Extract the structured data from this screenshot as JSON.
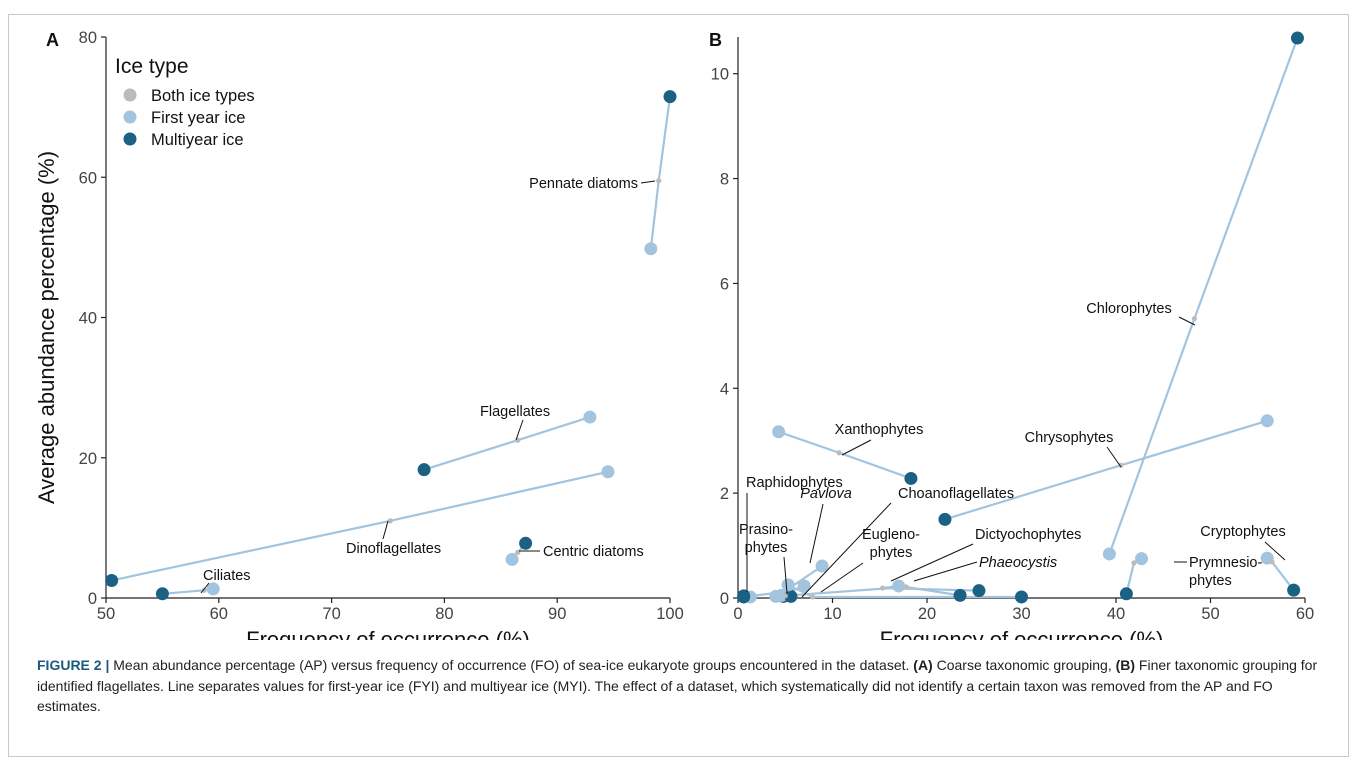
{
  "chart_data": [
    {
      "panel": "A",
      "type": "scatter",
      "xlabel": "Frequency of occurrence (%)",
      "ylabel": "Average abundance percentage (%)",
      "xlim": [
        50,
        100
      ],
      "ylim": [
        0,
        80
      ],
      "xticks": [
        50,
        60,
        70,
        80,
        90,
        100
      ],
      "yticks": [
        0,
        20,
        40,
        60,
        80
      ],
      "legend": {
        "title": "Ice type",
        "placement": "top-left",
        "entries": [
          {
            "name": "Both ice types",
            "color": "#bbbbbb"
          },
          {
            "name": "First year ice",
            "color": "#a3c4de"
          },
          {
            "name": "Multiyear ice",
            "color": "#1b6184"
          }
        ]
      },
      "groups": [
        {
          "label": "Pennate diatoms",
          "fyi": [
            98.3,
            49.8
          ],
          "both": [
            99.0,
            59.5
          ],
          "myi": [
            100.0,
            71.5
          ]
        },
        {
          "label": "Flagellates",
          "fyi": [
            92.9,
            25.8
          ],
          "both": [
            86.5,
            22.5
          ],
          "myi": [
            78.2,
            18.3
          ]
        },
        {
          "label": "Dinoflagellates",
          "fyi": [
            94.5,
            18.0
          ],
          "both": [
            75.2,
            11.0
          ],
          "myi": [
            50.5,
            2.5
          ]
        },
        {
          "label": "Centric diatoms",
          "fyi": [
            86.0,
            5.5
          ],
          "both": [
            86.5,
            6.5
          ],
          "myi": [
            87.2,
            7.8
          ]
        },
        {
          "label": "Ciliates",
          "fyi": [
            59.5,
            1.3
          ],
          "both": [
            58.7,
            1.1
          ],
          "myi": [
            55.0,
            0.6
          ]
        }
      ]
    },
    {
      "panel": "B",
      "type": "scatter",
      "xlabel": "Frequency of occurrence (%)",
      "ylabel": "",
      "xlim": [
        0,
        60
      ],
      "ylim": [
        0,
        10.7
      ],
      "xticks": [
        0,
        10,
        20,
        30,
        40,
        50,
        60
      ],
      "yticks": [
        0,
        2,
        4,
        6,
        8,
        10
      ],
      "groups": [
        {
          "label": "Chlorophytes",
          "fyi": [
            39.3,
            0.84
          ],
          "both": [
            48.3,
            5.33
          ],
          "myi": [
            59.2,
            10.68
          ]
        },
        {
          "label": "Chrysophytes",
          "fyi": [
            56.0,
            3.38
          ],
          "both": [
            40.5,
            2.53
          ],
          "myi": [
            21.9,
            1.5
          ]
        },
        {
          "label": "Xanthophytes",
          "fyi": [
            4.3,
            3.17
          ],
          "both": [
            10.7,
            2.77
          ],
          "myi": [
            18.3,
            2.28
          ]
        },
        {
          "label": "Cryptophytes",
          "fyi": [
            56.0,
            0.76
          ],
          "both": [
            56.5,
            0.69
          ],
          "myi": [
            58.8,
            0.15
          ]
        },
        {
          "label": "Prymnesio-phytes",
          "fyi": [
            42.7,
            0.75
          ],
          "both": [
            41.9,
            0.67
          ],
          "myi": [
            41.1,
            0.08
          ]
        },
        {
          "label": "Raphidophytes",
          "fyi": [
            1.3,
            0.02
          ],
          "both": [
            1.0,
            0.03
          ],
          "myi": [
            0.6,
            0.04
          ]
        },
        {
          "label": "Prasino-phytes",
          "fyi": [
            8.9,
            0.61
          ],
          "both": [
            4.9,
            0.12
          ],
          "myi": [
            0.6,
            0.02
          ]
        },
        {
          "label": "Pavlova",
          "fyi": [
            7.0,
            0.23
          ],
          "both": [
            5.3,
            0.11
          ],
          "myi": [
            4.8,
            0.03
          ]
        },
        {
          "label": "Choanoflagellates",
          "fyi": [
            4.6,
            0.05
          ],
          "both": [
            5.0,
            0.04
          ],
          "myi": [
            5.6,
            0.03
          ]
        },
        {
          "label": "Eugleno-phytes",
          "fyi": [
            5.3,
            0.25
          ],
          "both": [
            7.9,
            0.02
          ],
          "myi": [
            30.0,
            0.02
          ]
        },
        {
          "label": "Dictyochophytes",
          "fyi": [
            17.0,
            0.23
          ],
          "both": [
            15.3,
            0.19
          ],
          "myi": [
            25.5,
            0.14
          ]
        },
        {
          "label": "Phaeocystis",
          "fyi": [
            4.0,
            0.03
          ],
          "both": [
            17.8,
            0.21
          ],
          "myi": [
            23.5,
            0.05
          ]
        }
      ]
    }
  ],
  "caption": {
    "fig_label": "FIGURE 2 |",
    "lead": " Mean abundance percentage (AP) versus frequency of occurrence (FO) of sea-ice eukaryote groups encountered in the dataset. ",
    "a_tag": "(A)",
    "a_text": " Coarse taxonomic grouping, ",
    "b_tag": "(B)",
    "b_text": " Finer taxonomic grouping for identified flagellates. Line separates values for first-year ice (FYI) and multiyear ice (MYI). The effect of a dataset, which systematically did not identify a certain taxon was removed from the AP and FO estimates."
  }
}
